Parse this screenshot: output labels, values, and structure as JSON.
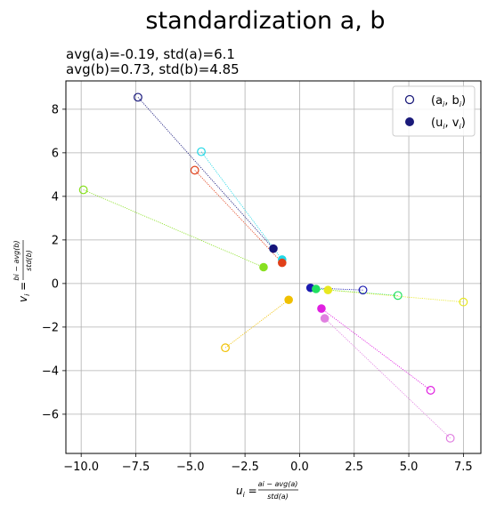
{
  "chart_data": {
    "type": "scatter",
    "title": "standardization a, b",
    "subtitle_lines": [
      "avg(a)=-0.19, std(a)=6.1",
      "avg(b)=0.73, std(b)=4.85"
    ],
    "xlim": [
      -10.7,
      8.3
    ],
    "ylim": [
      -7.8,
      9.3
    ],
    "xticks": [
      -10.0,
      -7.5,
      -5.0,
      -2.5,
      0.0,
      2.5,
      5.0,
      7.5
    ],
    "xtick_labels": [
      "−10.0",
      "−7.5",
      "−5.0",
      "−2.5",
      "0.0",
      "2.5",
      "5.0",
      "7.5"
    ],
    "yticks": [
      -6,
      -4,
      -2,
      0,
      2,
      4,
      6,
      8
    ],
    "ytick_labels": [
      "−6",
      "−4",
      "−2",
      "0",
      "2",
      "4",
      "6",
      "8"
    ],
    "xlabel": {
      "lhs": "u",
      "sub": "i",
      "eq": " = ",
      "num": "a",
      "num_sub": "i",
      "num_rest": " − avg(a)",
      "den": "std(a)"
    },
    "ylabel": {
      "lhs": "v",
      "sub": "i",
      "eq": " = ",
      "num": "b",
      "num_sub": "i",
      "num_rest": " − avg(b)",
      "den": "std(b)"
    },
    "grid": true,
    "legend_position": "top-right",
    "legend": [
      {
        "marker": "open",
        "label": "(a",
        "sub": "i",
        "label2": ", b",
        "sub2": "i",
        "close": ")"
      },
      {
        "marker": "filled",
        "label": "(u",
        "sub": "i",
        "label2": ", v",
        "sub2": "i",
        "close": ")"
      }
    ],
    "legend_color": "#1a1a7a",
    "pairs": [
      {
        "a": -7.4,
        "b": 8.55,
        "u": -1.2,
        "v": 1.6,
        "color": "#15157a"
      },
      {
        "a": -4.5,
        "b": 6.05,
        "u": -0.8,
        "v": 1.1,
        "color": "#22d8e6"
      },
      {
        "a": -4.8,
        "b": 5.2,
        "u": -0.8,
        "v": 0.95,
        "color": "#e0401a"
      },
      {
        "a": -9.9,
        "b": 4.3,
        "u": -1.65,
        "v": 0.75,
        "color": "#88e020"
      },
      {
        "a": 2.9,
        "b": -0.3,
        "u": 0.5,
        "v": -0.2,
        "color": "#1a1ab0"
      },
      {
        "a": 4.5,
        "b": -0.55,
        "u": 0.75,
        "v": -0.25,
        "color": "#20e060"
      },
      {
        "a": 7.5,
        "b": -0.85,
        "u": 1.3,
        "v": -0.3,
        "color": "#e8e820"
      },
      {
        "a": -3.4,
        "b": -2.95,
        "u": -0.5,
        "v": -0.75,
        "color": "#f0c000"
      },
      {
        "a": 6.0,
        "b": -4.9,
        "u": 1.0,
        "v": -1.15,
        "color": "#e020e0"
      },
      {
        "a": 6.9,
        "b": -7.1,
        "u": 1.15,
        "v": -1.6,
        "color": "#e080e0"
      }
    ]
  }
}
